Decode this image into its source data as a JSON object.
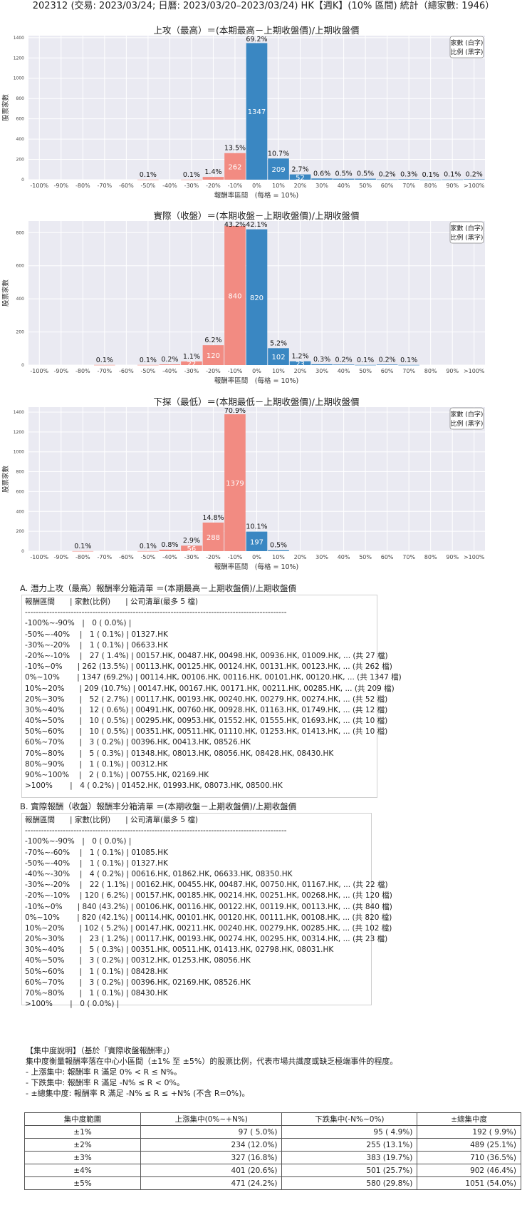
{
  "page": {
    "title": "202312 (交易: 2023/03/24; 日曆: 2023/03/20–2023/03/24) HK【週K】(10% 區間) 統計（總家數: 1946）"
  },
  "chart_data": [
    {
      "type": "bar",
      "title": "上攻（最高）＝(本期最高－上期收盤價)/上期收盤價",
      "xlabel": "報酬率區間　(每格 = 10%)",
      "ylabel": "股票家數",
      "legend": [
        "家數 (白字)",
        "比例 (黑字)"
      ],
      "legend_position": "top-right",
      "ylim": [
        0,
        1420
      ],
      "yticks": [
        0,
        200,
        400,
        600,
        800,
        1000,
        1200,
        1400
      ],
      "categories": [
        "-100%",
        "-90%",
        "-80%",
        "-70%",
        "-60%",
        "-50%",
        "-40%",
        "-30%",
        "-20%",
        "-10%",
        "0%",
        "10%",
        "20%",
        "30%",
        "40%",
        "50%",
        "60%",
        "70%",
        "80%",
        "90%",
        ">100%"
      ],
      "values": [
        0,
        0,
        0,
        0,
        0,
        1,
        0,
        1,
        27,
        262,
        1347,
        209,
        52,
        12,
        10,
        10,
        3,
        5,
        1,
        2,
        4
      ],
      "pct_labels": [
        "",
        "",
        "",
        "",
        "",
        "0.1%",
        "",
        "0.1%",
        "1.4%",
        "13.5%",
        "69.2%",
        "10.7%",
        "2.7%",
        "0.6%",
        "0.5%",
        "0.5%",
        "0.2%",
        "0.3%",
        "0.1%",
        "0.1%",
        "0.2%"
      ],
      "count_labels": [
        "",
        "",
        "",
        "",
        "",
        "",
        "",
        "",
        "",
        "262",
        "1347",
        "209",
        "52",
        "",
        "",
        "",
        "",
        "",
        "",
        "",
        ""
      ],
      "colors": {
        "negative": "#f28b82",
        "positive": "#3a87c2",
        "background": "#eaeaf2"
      },
      "grid": true
    },
    {
      "type": "bar",
      "title": "實際（收盤）＝(本期收盤－上期收盤價)/上期收盤價",
      "xlabel": "報酬率區間　(每格 = 10%)",
      "ylabel": "股票家數",
      "legend": [
        "家數 (白字)",
        "比例 (黑字)"
      ],
      "legend_position": "top-right",
      "ylim": [
        0,
        870
      ],
      "yticks": [
        0,
        200,
        400,
        600,
        800
      ],
      "categories": [
        "-100%",
        "-90%",
        "-80%",
        "-70%",
        "-60%",
        "-50%",
        "-40%",
        "-30%",
        "-20%",
        "-10%",
        "0%",
        "10%",
        "20%",
        "30%",
        "40%",
        "50%",
        "60%",
        "70%",
        "80%",
        "90%",
        ">100%"
      ],
      "values": [
        0,
        0,
        0,
        1,
        0,
        1,
        4,
        22,
        120,
        840,
        820,
        102,
        23,
        5,
        3,
        1,
        3,
        1,
        0,
        0,
        0
      ],
      "pct_labels": [
        "",
        "",
        "",
        "0.1%",
        "",
        "0.1%",
        "0.2%",
        "1.1%",
        "6.2%",
        "43.2%",
        "42.1%",
        "5.2%",
        "1.2%",
        "0.3%",
        "0.2%",
        "0.1%",
        "0.2%",
        "0.1%",
        "",
        "",
        ""
      ],
      "count_labels": [
        "",
        "",
        "",
        "",
        "",
        "",
        "",
        "22",
        "120",
        "840",
        "820",
        "102",
        "23",
        "",
        "",
        "",
        "",
        "",
        "",
        "",
        ""
      ],
      "colors": {
        "negative": "#f28b82",
        "positive": "#3a87c2",
        "background": "#eaeaf2"
      },
      "grid": true
    },
    {
      "type": "bar",
      "title": "下探（最低）＝(本期最低－上期收盤價)/上期收盤價",
      "xlabel": "報酬率區間　(每格 = 10%)",
      "ylabel": "股票家數",
      "legend": [
        "家數 (白字)",
        "比例 (黑字)"
      ],
      "legend_position": "top-right",
      "ylim": [
        0,
        1450
      ],
      "yticks": [
        0,
        200,
        400,
        600,
        800,
        1000,
        1200,
        1400
      ],
      "categories": [
        "-100%",
        "-90%",
        "-80%",
        "-70%",
        "-60%",
        "-50%",
        "-40%",
        "-30%",
        "-20%",
        "-10%",
        "0%",
        "10%",
        "20%",
        "30%",
        "40%",
        "50%",
        "60%",
        "70%",
        "80%",
        "90%",
        ">100%"
      ],
      "values": [
        0,
        0,
        1,
        0,
        0,
        1,
        15,
        56,
        288,
        1379,
        197,
        9,
        0,
        0,
        0,
        0,
        0,
        0,
        0,
        0,
        0
      ],
      "pct_labels": [
        "",
        "",
        "0.1%",
        "",
        "",
        "0.1%",
        "0.8%",
        "2.9%",
        "14.8%",
        "70.9%",
        "10.1%",
        "0.5%",
        "",
        "",
        "",
        "",
        "",
        "",
        "",
        "",
        ""
      ],
      "count_labels": [
        "",
        "",
        "",
        "",
        "",
        "",
        "",
        "56",
        "288",
        "1379",
        "197",
        "",
        "",
        "",
        "",
        "",
        "",
        "",
        "",
        "",
        ""
      ],
      "colors": {
        "negative": "#f28b82",
        "positive": "#3a87c2",
        "background": "#eaeaf2"
      },
      "grid": true
    }
  ],
  "list_a": {
    "heading": "A. 潛力上攻（最高）報酬率分箱清單 ＝(本期最高－上期收盤價)/上期收盤價",
    "lines": [
      "報酬區間　　| 家數(比例)　　| 公司清單(最多 5 檔)",
      "-------------------------------------------------------------------------------------------------",
      "-100%~-90%　|　0 ( 0.0%) |",
      "-50%~-40%　 |　1 ( 0.1%) | 01327.HK",
      "-30%~-20%　 |　1 ( 0.1%) | 06633.HK",
      "-20%~-10%　 |　27 ( 1.4%) | 00157.HK, 00487.HK, 00498.HK, 00936.HK, 01009.HK, ... (共 27 檔)",
      "-10%~0%　　| 262 (13.5%) | 00113.HK, 00125.HK, 00124.HK, 00131.HK, 00123.HK, ... (共 262 檔)",
      "0%~10%　　 | 1347 (69.2%) | 00114.HK, 00106.HK, 00116.HK, 00101.HK, 00120.HK, ... (共 1347 檔)",
      "10%~20%　　| 209 (10.7%) | 00147.HK, 00167.HK, 00171.HK, 00211.HK, 00285.HK, ... (共 209 檔)",
      "20%~30%　　|　52 ( 2.7%) | 00117.HK, 00193.HK, 00240.HK, 00279.HK, 00274.HK, ... (共 52 檔)",
      "30%~40%　　|　12 ( 0.6%) | 00491.HK, 00760.HK, 00928.HK, 01163.HK, 01749.HK, ... (共 12 檔)",
      "40%~50%　　|　10 ( 0.5%) | 00295.HK, 00953.HK, 01552.HK, 01555.HK, 01693.HK, ... (共 10 檔)",
      "50%~60%　　|　10 ( 0.5%) | 00351.HK, 00511.HK, 01110.HK, 01253.HK, 01413.HK, ... (共 10 檔)",
      "60%~70%　　|　3 ( 0.2%) | 00396.HK, 00413.HK, 08526.HK",
      "70%~80%　　|　5 ( 0.3%) | 01348.HK, 08013.HK, 08056.HK, 08428.HK, 08430.HK",
      "80%~90%　　|　1 ( 0.1%) | 00312.HK",
      "90%~100%　 |　2 ( 0.1%) | 00755.HK, 02169.HK",
      ">100%　　 |　4 ( 0.2%) | 01452.HK, 01993.HK, 08073.HK, 08500.HK"
    ]
  },
  "list_b": {
    "heading": "B. 實際報酬（收盤）報酬率分箱清單 ＝(本期收盤－上期收盤價)/上期收盤價",
    "lines": [
      "報酬區間　　| 家數(比例)　　| 公司清單(最多 5 檔)",
      "-------------------------------------------------------------------------------------------------",
      "-100%~-90%　|　0 ( 0.0%) |",
      "-70%~-60%　 |　1 ( 0.1%) | 01085.HK",
      "-50%~-40%　 |　1 ( 0.1%) | 01327.HK",
      "-40%~-30%　 |　4 ( 0.2%) | 00616.HK, 01862.HK, 06633.HK, 08350.HK",
      "-30%~-20%　 |　22 ( 1.1%) | 00162.HK, 00455.HK, 00487.HK, 00750.HK, 01167.HK, ... (共 22 檔)",
      "-20%~-10%　 | 120 ( 6.2%) | 00157.HK, 00185.HK, 00214.HK, 00251.HK, 00268.HK, ... (共 120 檔)",
      "-10%~0%　　| 840 (43.2%) | 00106.HK, 00116.HK, 00122.HK, 00119.HK, 00113.HK, ... (共 840 檔)",
      "0%~10%　　 | 820 (42.1%) | 00114.HK, 00101.HK, 00120.HK, 00111.HK, 00108.HK, ... (共 820 檔)",
      "10%~20%　　| 102 ( 5.2%) | 00147.HK, 00211.HK, 00240.HK, 00279.HK, 00285.HK, ... (共 102 檔)",
      "20%~30%　　|　23 ( 1.2%) | 00117.HK, 00193.HK, 00274.HK, 00295.HK, 00314.HK, ... (共 23 檔)",
      "30%~40%　　|　5 ( 0.3%) | 00351.HK, 00511.HK, 01413.HK, 02798.HK, 08031.HK",
      "40%~50%　　|　3 ( 0.2%) | 00312.HK, 01253.HK, 08056.HK",
      "50%~60%　　|　1 ( 0.1%) | 08428.HK",
      "60%~70%　　|　3 ( 0.2%) | 00396.HK, 02169.HK, 08526.HK",
      "70%~80%　　|　1 ( 0.1%) | 08430.HK",
      ">100%　　 |　0 ( 0.0%) |"
    ]
  },
  "concentration": {
    "heading": "【集中度說明】（基於「實際收盤報酬率」）",
    "intro": "集中度衡量報酬率落在中心小區間（±1% 至 ±5%）的股票比例，代表市場共識度或缺乏極端事件的程度。",
    "items": [
      "- 上漲集中: 報酬率 R 滿足 0% < R ≤ N%。",
      "- 下跌集中: 報酬率 R 滿足 -N% ≤ R < 0%。",
      "- ±總集中度: 報酬率 R 滿足 -N% ≤ R ≤ +N% (不含 R=0%)。"
    ],
    "table": {
      "headers": [
        "集中度範圍",
        "上漲集中(0%~+N%)",
        "下跌集中(-N%~0%)",
        "±總集中度"
      ],
      "rows": [
        [
          "±1%",
          "97 ( 5.0%)",
          "95 ( 4.9%)",
          "192 ( 9.9%)"
        ],
        [
          "±2%",
          "234 (12.0%)",
          "255 (13.1%)",
          "489 (25.1%)"
        ],
        [
          "±3%",
          "327 (16.8%)",
          "383 (19.7%)",
          "710 (36.5%)"
        ],
        [
          "±4%",
          "401 (20.6%)",
          "501 (25.7%)",
          "902 (46.4%)"
        ],
        [
          "±5%",
          "471 (24.2%)",
          "580 (29.8%)",
          "1051 (54.0%)"
        ]
      ]
    }
  }
}
